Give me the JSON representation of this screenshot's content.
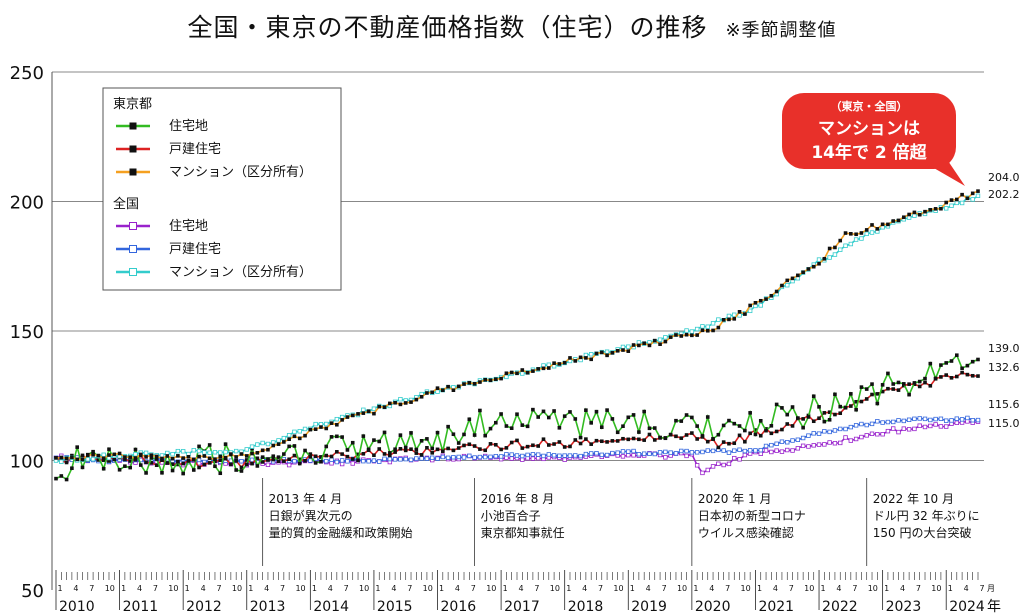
{
  "title": "全国・東京の不動産価格指数（住宅）",
  "title_suffix": "の推移",
  "note": "※季節調整値",
  "chart_data": {
    "type": "line",
    "ylim": [
      50,
      250
    ],
    "yticks": [
      50,
      100,
      150,
      200,
      250
    ],
    "grid": "horizontal",
    "x_start": "2010-01",
    "x_end": "2024-07",
    "month_tick_labels": [
      "1",
      "4",
      "7",
      "10"
    ],
    "month_unit": "月",
    "year_unit": "年",
    "years": [
      "2010",
      "2011",
      "2012",
      "2013",
      "2014",
      "2015",
      "2016",
      "2017",
      "2018",
      "2019",
      "2020",
      "2021",
      "2022",
      "2023",
      "2024"
    ],
    "legend_groups": [
      "東京都",
      "全国"
    ],
    "series": [
      {
        "name": "住宅地",
        "group": "東京都",
        "color": "#33bb22",
        "marker": "filled",
        "anchors": [
          [
            "2010-01",
            93
          ],
          [
            "2010-06",
            102
          ],
          [
            "2011-06",
            98
          ],
          [
            "2012-06",
            101
          ],
          [
            "2013-01",
            100
          ],
          [
            "2014-01",
            102
          ],
          [
            "2015-01",
            106
          ],
          [
            "2016-01",
            108
          ],
          [
            "2016-06",
            112
          ],
          [
            "2017-01",
            116
          ],
          [
            "2018-01",
            113
          ],
          [
            "2019-01",
            116
          ],
          [
            "2020-01",
            112
          ],
          [
            "2020-06",
            110
          ],
          [
            "2021-01",
            114
          ],
          [
            "2022-01",
            120
          ],
          [
            "2023-01",
            128
          ],
          [
            "2024-01",
            133
          ],
          [
            "2024-07",
            139
          ]
        ],
        "end_value": 139.0,
        "wiggle": 6
      },
      {
        "name": "戸建住宅",
        "group": "東京都",
        "color": "#dd2222",
        "marker": "filled",
        "anchors": [
          [
            "2010-01",
            101
          ],
          [
            "2011-01",
            101
          ],
          [
            "2012-01",
            99
          ],
          [
            "2013-01",
            99
          ],
          [
            "2014-01",
            101
          ],
          [
            "2015-01",
            103
          ],
          [
            "2016-01",
            104
          ],
          [
            "2017-01",
            106
          ],
          [
            "2018-01",
            107
          ],
          [
            "2019-01",
            109
          ],
          [
            "2020-01",
            109
          ],
          [
            "2020-06",
            106
          ],
          [
            "2021-01",
            110
          ],
          [
            "2022-01",
            117
          ],
          [
            "2023-01",
            126
          ],
          [
            "2024-01",
            132
          ],
          [
            "2024-07",
            132.6
          ]
        ],
        "end_value": 132.6,
        "wiggle": 1.8
      },
      {
        "name": "マンション（区分所有）",
        "group": "東京都",
        "color": "#f5a020",
        "marker": "filled",
        "anchors": [
          [
            "2010-01",
            101
          ],
          [
            "2011-01",
            102
          ],
          [
            "2012-01",
            101
          ],
          [
            "2013-01",
            102
          ],
          [
            "2014-01",
            111
          ],
          [
            "2015-01",
            119
          ],
          [
            "2016-01",
            127
          ],
          [
            "2017-01",
            132
          ],
          [
            "2018-01",
            138
          ],
          [
            "2019-01",
            143
          ],
          [
            "2020-01",
            149
          ],
          [
            "2020-06",
            152
          ],
          [
            "2021-01",
            160
          ],
          [
            "2022-01",
            177
          ],
          [
            "2022-06",
            187
          ],
          [
            "2023-01",
            191
          ],
          [
            "2024-01",
            199
          ],
          [
            "2024-07",
            204
          ]
        ],
        "end_value": 204.0,
        "wiggle": 1.2
      },
      {
        "name": "住宅地",
        "group": "全国",
        "color": "#9922cc",
        "marker": "hollow",
        "anchors": [
          [
            "2010-01",
            101
          ],
          [
            "2011-01",
            100
          ],
          [
            "2012-01",
            99
          ],
          [
            "2013-01",
            99
          ],
          [
            "2014-01",
            99
          ],
          [
            "2015-01",
            100
          ],
          [
            "2016-01",
            101
          ],
          [
            "2017-01",
            101
          ],
          [
            "2018-01",
            101
          ],
          [
            "2019-01",
            102
          ],
          [
            "2020-01",
            102
          ],
          [
            "2020-03",
            96
          ],
          [
            "2021-01",
            103
          ],
          [
            "2022-01",
            106
          ],
          [
            "2023-01",
            111
          ],
          [
            "2024-01",
            114
          ],
          [
            "2024-07",
            115
          ]
        ],
        "end_value": 115.0,
        "wiggle": 0.9
      },
      {
        "name": "戸建住宅",
        "group": "全国",
        "color": "#3366dd",
        "marker": "hollow",
        "anchors": [
          [
            "2010-01",
            101
          ],
          [
            "2011-01",
            100
          ],
          [
            "2012-01",
            100
          ],
          [
            "2013-01",
            100
          ],
          [
            "2014-01",
            100
          ],
          [
            "2015-01",
            100
          ],
          [
            "2016-01",
            101
          ],
          [
            "2017-01",
            102
          ],
          [
            "2018-01",
            102
          ],
          [
            "2019-01",
            103
          ],
          [
            "2020-01",
            103
          ],
          [
            "2021-01",
            104
          ],
          [
            "2022-01",
            111
          ],
          [
            "2023-01",
            115
          ],
          [
            "2024-01",
            116
          ],
          [
            "2024-07",
            115.6
          ]
        ],
        "end_value": 115.6,
        "wiggle": 0.7
      },
      {
        "name": "マンション（区分所有）",
        "group": "全国",
        "color": "#33cccc",
        "marker": "hollow",
        "anchors": [
          [
            "2010-01",
            100
          ],
          [
            "2011-01",
            102
          ],
          [
            "2012-01",
            103
          ],
          [
            "2013-01",
            104
          ],
          [
            "2014-01",
            113
          ],
          [
            "2015-01",
            120
          ],
          [
            "2016-01",
            127
          ],
          [
            "2017-01",
            132
          ],
          [
            "2018-01",
            138
          ],
          [
            "2019-01",
            144
          ],
          [
            "2020-01",
            150
          ],
          [
            "2021-01",
            159
          ],
          [
            "2022-01",
            177
          ],
          [
            "2023-01",
            190
          ],
          [
            "2024-01",
            198
          ],
          [
            "2024-07",
            202.2
          ]
        ],
        "end_value": 202.2,
        "wiggle": 0.8
      }
    ],
    "end_labels": [
      "204.0",
      "202.2",
      "139.0",
      "132.6",
      "115.6",
      "115.0"
    ],
    "annotations": [
      {
        "date": "2013-04",
        "lines": [
          "2013 年 4 月",
          "日銀が異次元の",
          "量的質的金融緩和政策開始"
        ]
      },
      {
        "date": "2016-08",
        "lines": [
          "2016 年 8 月",
          "小池百合子",
          "東京都知事就任"
        ]
      },
      {
        "date": "2020-01",
        "lines": [
          "2020 年 1 月",
          "日本初の新型コロナ",
          "ウイルス感染確認"
        ]
      },
      {
        "date": "2022-10",
        "lines": [
          "2022 年 10 月",
          "ドル円 32 年ぶりに",
          "150 円の大台突破"
        ]
      }
    ],
    "callout": {
      "lines": [
        "（東京・全国）",
        "マンションは",
        "14年で 2 倍超"
      ],
      "color": "#e8302a"
    }
  }
}
